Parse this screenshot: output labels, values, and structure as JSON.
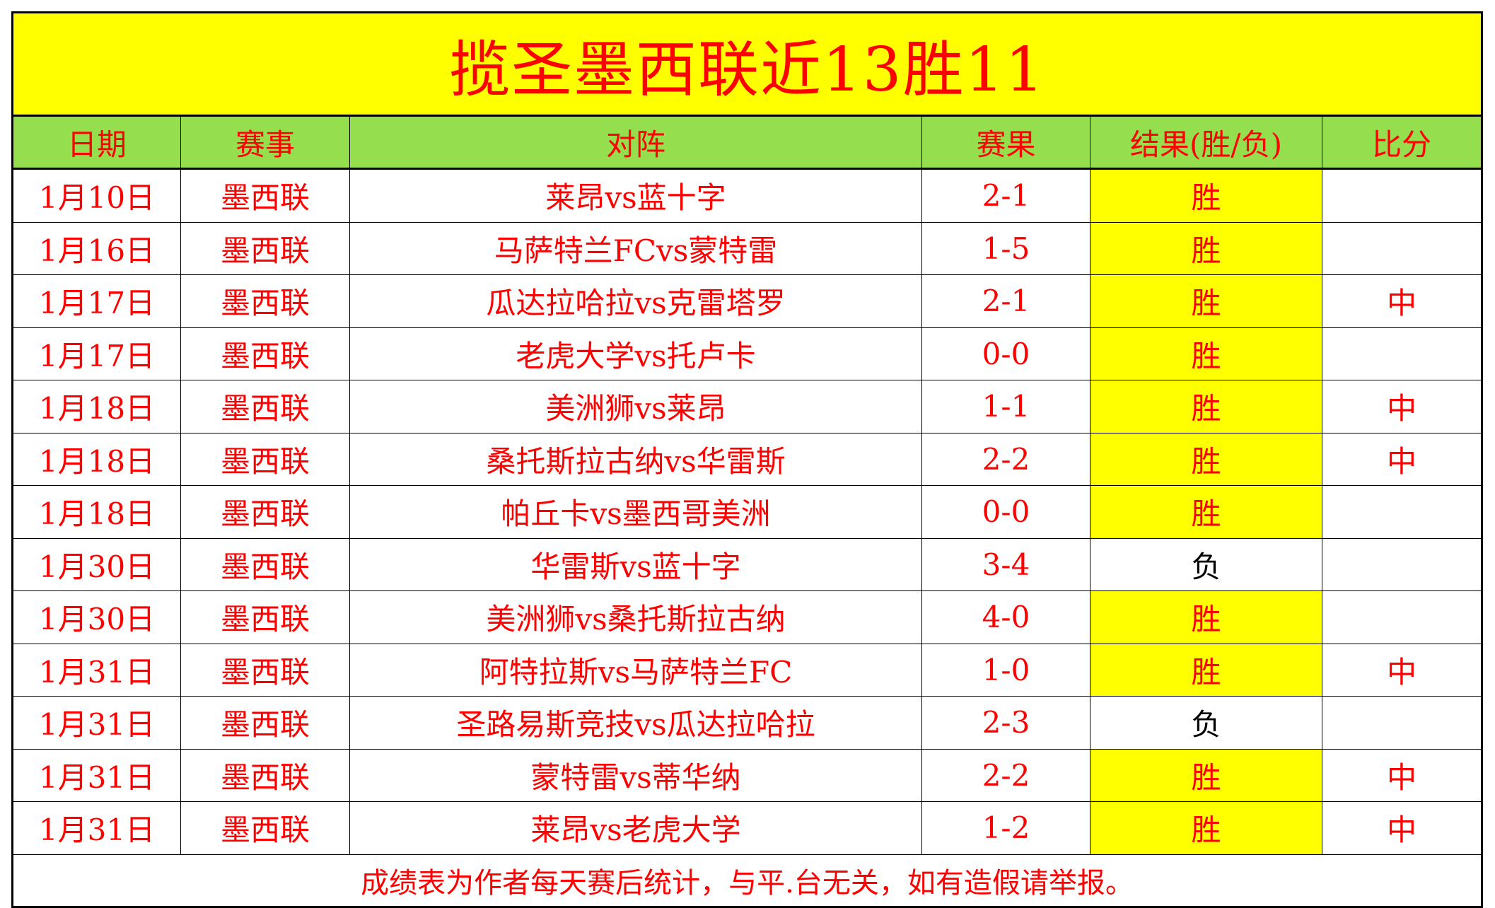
{
  "title": "揽圣墨西联近13胜11",
  "headers": [
    "日期",
    "赛事",
    "对阵",
    "赛果",
    "结果(胜/负)",
    "比分"
  ],
  "rows": [
    {
      "date": "1月10日",
      "league": "墨西联",
      "match": "莱昂vs蓝十字",
      "score": "2-1",
      "result": "胜",
      "mark": ""
    },
    {
      "date": "1月16日",
      "league": "墨西联",
      "match": "马萨特兰FCvs蒙特雷",
      "score": "1-5",
      "result": "胜",
      "mark": ""
    },
    {
      "date": "1月17日",
      "league": "墨西联",
      "match": "瓜达拉哈拉vs克雷塔罗",
      "score": "2-1",
      "result": "胜",
      "mark": "中"
    },
    {
      "date": "1月17日",
      "league": "墨西联",
      "match": "老虎大学vs托卢卡",
      "score": "0-0",
      "result": "胜",
      "mark": ""
    },
    {
      "date": "1月18日",
      "league": "墨西联",
      "match": "美洲狮vs莱昂",
      "score": "1-1",
      "result": "胜",
      "mark": "中"
    },
    {
      "date": "1月18日",
      "league": "墨西联",
      "match": "桑托斯拉古纳vs华雷斯",
      "score": "2-2",
      "result": "胜",
      "mark": "中"
    },
    {
      "date": "1月18日",
      "league": "墨西联",
      "match": "帕丘卡vs墨西哥美洲",
      "score": "0-0",
      "result": "胜",
      "mark": ""
    },
    {
      "date": "1月30日",
      "league": "墨西联",
      "match": "华雷斯vs蓝十字",
      "score": "3-4",
      "result": "负",
      "mark": ""
    },
    {
      "date": "1月30日",
      "league": "墨西联",
      "match": "美洲狮vs桑托斯拉古纳",
      "score": "4-0",
      "result": "胜",
      "mark": ""
    },
    {
      "date": "1月31日",
      "league": "墨西联",
      "match": "阿特拉斯vs马萨特兰FC",
      "score": "1-0",
      "result": "胜",
      "mark": "中"
    },
    {
      "date": "1月31日",
      "league": "墨西联",
      "match": "圣路易斯竞技vs瓜达拉哈拉",
      "score": "2-3",
      "result": "负",
      "mark": ""
    },
    {
      "date": "1月31日",
      "league": "墨西联",
      "match": "蒙特雷vs蒂华纳",
      "score": "2-2",
      "result": "胜",
      "mark": "中"
    },
    {
      "date": "1月31日",
      "league": "墨西联",
      "match": "莱昂vs老虎大学",
      "score": "1-2",
      "result": "胜",
      "mark": "中"
    }
  ],
  "footer": "成绩表为作者每天赛后统计，与平.台无关，如有造假请举报。",
  "colors": {
    "title_bg": "#ffff00",
    "header_bg": "#95de4e",
    "win_bg": "#ffff00",
    "text": "#ff0000",
    "loss_text": "#000000"
  }
}
